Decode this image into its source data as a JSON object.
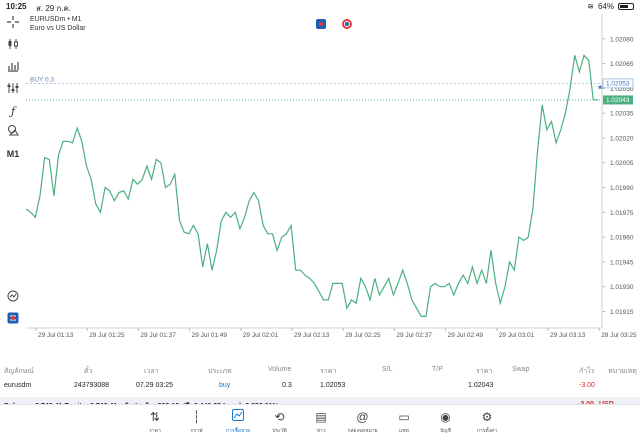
{
  "status_bar": {
    "time": "10:25",
    "date": "ส. 29 ก.ค.",
    "battery": "64%"
  },
  "symbol": {
    "title": "EURUSDm • M1",
    "description": "Euro vs US Dollar"
  },
  "toolbar_icons": [
    "crosshair-icon",
    "candles-icon",
    "bar-chart-icon",
    "indicators-icon",
    "function-icon",
    "objects-icon",
    "timeframe-icon"
  ],
  "timeframe_label": "M1",
  "chart_data": {
    "type": "line",
    "title": "EURUSDm • M1",
    "y_ticks": [
      "1.02080",
      "1.02065",
      "1.02050",
      "1.02035",
      "1.02020",
      "1.02005",
      "1.01990",
      "1.01975",
      "1.01960",
      "1.01945",
      "1.01930",
      "1.01915"
    ],
    "y_tick_values": [
      1.0208,
      1.02065,
      1.0205,
      1.02035,
      1.0202,
      1.02005,
      1.0199,
      1.01975,
      1.0196,
      1.01945,
      1.0193,
      1.01915
    ],
    "x_ticks": [
      "29 Jul 01:13",
      "29 Jul 01:25",
      "29 Jul 01:37",
      "29 Jul 01:49",
      "29 Jul 02:01",
      "29 Jul 02:13",
      "29 Jul 02:25",
      "29 Jul 02:37",
      "29 Jul 02:49",
      "29 Jul 03:01",
      "29 Jul 03:13",
      "29 Jul 03:25"
    ],
    "ylim": [
      1.01905,
      1.02095
    ],
    "series_color": "#4caf80",
    "values": [
      1.01977,
      1.01975,
      1.01972,
      1.01985,
      1.02008,
      1.02007,
      1.01985,
      1.0201,
      1.02018,
      1.02018,
      1.02017,
      1.02026,
      1.02018,
      1.02003,
      1.01995,
      1.0198,
      1.01975,
      1.0199,
      1.01988,
      1.01982,
      1.01987,
      1.01988,
      1.01983,
      1.01995,
      1.01992,
      1.01995,
      1.02003,
      1.01995,
      1.02007,
      1.02005,
      1.0199,
      1.01992,
      1.01998,
      1.0197,
      1.01963,
      1.01962,
      1.01967,
      1.01962,
      1.01942,
      1.01956,
      1.0194,
      1.01952,
      1.0197,
      1.01975,
      1.01972,
      1.01975,
      1.01965,
      1.01972,
      1.01982,
      1.01987,
      1.01982,
      1.01967,
      1.01962,
      1.01962,
      1.01952,
      1.0196,
      1.01962,
      1.01967,
      1.0194,
      1.0194,
      1.01937,
      1.01935,
      1.01932,
      1.01927,
      1.01922,
      1.01922,
      1.01932,
      1.01932,
      1.01932,
      1.01917,
      1.01922,
      1.0192,
      1.01935,
      1.0193,
      1.01922,
      1.01935,
      1.01925,
      1.0193,
      1.01935,
      1.01925,
      1.01932,
      1.0194,
      1.01932,
      1.01922,
      1.01917,
      1.01912,
      1.01912,
      1.0193,
      1.01932,
      1.0193,
      1.0193,
      1.01932,
      1.01925,
      1.01932,
      1.01937,
      1.01932,
      1.01942,
      1.01932,
      1.0194,
      1.01932,
      1.01952,
      1.01932,
      1.0192,
      1.0193,
      1.01945,
      1.0194,
      1.0196,
      1.01958,
      1.0196,
      1.01977,
      1.02012,
      1.0204,
      1.02025,
      1.0203,
      1.02017,
      1.02025,
      1.02035,
      1.0205,
      1.0207,
      1.0206,
      1.0207,
      1.02067,
      1.02043,
      1.02043
    ],
    "buy_line": {
      "label": "BUY 0.3",
      "price": "1.02053",
      "value": 1.02053
    },
    "current_line": {
      "price": "1.02043",
      "value": 1.02043
    }
  },
  "positions_table": {
    "headers": [
      "สัญลักษณ์",
      "ตั๋ว",
      "เวลา",
      "ประเภท",
      "Volume",
      "ราคา",
      "S/L",
      "T/P",
      "ราคา",
      "Swap",
      "กำไร",
      "หมายเหตุ"
    ],
    "row": {
      "symbol": "eurusdm",
      "ticket": "243793088",
      "time": "07.29 03:25",
      "type": "buy",
      "volume": "0.3",
      "price": "1.02053",
      "sl": "",
      "tp": "",
      "current_price": "1.02043",
      "swap": "",
      "profit": "-3.00",
      "comment": ""
    }
  },
  "balance": {
    "summary": "Balance: 8 749.41 Equity: 8 746.41 หลักประกัน: 306.16 ฟรี: 8 440.25 Level: 2 856.81%",
    "profit": "-3.00",
    "currency": "USD"
  },
  "nav": [
    {
      "label": "ราคา",
      "icon": "quotes-icon"
    },
    {
      "label": "กราฟ",
      "icon": "candles-icon"
    },
    {
      "label": "การซื้อขาย",
      "icon": "trade-icon",
      "active": true
    },
    {
      "label": "ประวัติ",
      "icon": "history-icon"
    },
    {
      "label": "ข่าว",
      "icon": "news-icon"
    },
    {
      "label": "กล่องจดหมาย",
      "icon": "mailbox-icon"
    },
    {
      "label": "แชท",
      "icon": "chat-icon"
    },
    {
      "label": "บัญชี",
      "icon": "accounts-icon"
    },
    {
      "label": "การตั้งค่า",
      "icon": "settings-icon"
    }
  ]
}
